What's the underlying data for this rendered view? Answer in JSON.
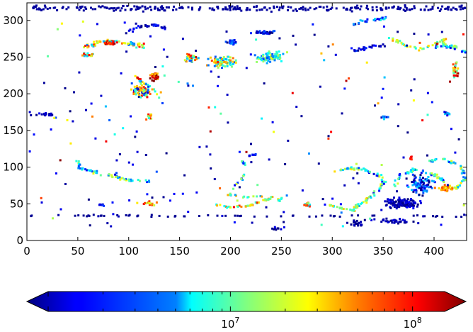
{
  "chart_data": {
    "type": "heatmap",
    "title": "",
    "xlabel": "",
    "ylabel": "",
    "xlim": [
      0,
      432
    ],
    "ylim": [
      0,
      324
    ],
    "x_ticks": [
      0,
      50,
      100,
      150,
      200,
      250,
      300,
      350,
      400
    ],
    "y_ticks": [
      0,
      50,
      100,
      150,
      200,
      250,
      300
    ],
    "x_tick_labels": [
      "0",
      "50",
      "100",
      "150",
      "200",
      "250",
      "300",
      "350",
      "400"
    ],
    "y_tick_labels": [
      "0",
      "50",
      "100",
      "150",
      "200",
      "250",
      "300"
    ],
    "colormap": "jet",
    "colorbar": {
      "orientation": "horizontal",
      "scale": "log",
      "range": [
        1000000,
        150000000
      ],
      "extend": "both",
      "ticks": [
        10000000,
        100000000
      ],
      "tick_labels": [
        {
          "base": "10",
          "exp": "7"
        },
        {
          "base": "10",
          "exp": "8"
        }
      ]
    },
    "features": [
      {
        "type": "band",
        "x0": 0,
        "x1": 432,
        "y": 318,
        "spread": 6,
        "n": 260,
        "val": 0.03
      },
      {
        "type": "band",
        "x0": 0,
        "x1": 432,
        "y": 35,
        "spread": 2,
        "n": 60,
        "val": 0.02
      },
      {
        "type": "arc",
        "points": [
          [
            55,
            265
          ],
          [
            70,
            272
          ],
          [
            85,
            273
          ],
          [
            100,
            270
          ],
          [
            115,
            266
          ]
        ],
        "width": 4,
        "n": 70,
        "val": 0.55,
        "jit": 0.35
      },
      {
        "type": "blob",
        "cx": 80,
        "cy": 270,
        "rx": 10,
        "ry": 4,
        "n": 25,
        "val": 0.88,
        "jit": 0.15
      },
      {
        "type": "arc",
        "points": [
          [
            95,
            285
          ],
          [
            110,
            293
          ],
          [
            125,
            296
          ],
          [
            135,
            290
          ]
        ],
        "width": 3,
        "n": 30,
        "val": 0.08,
        "jit": 0.1
      },
      {
        "type": "blob",
        "cx": 60,
        "cy": 255,
        "rx": 8,
        "ry": 4,
        "n": 18,
        "val": 0.6,
        "jit": 0.3
      },
      {
        "type": "blob",
        "cx": 112,
        "cy": 205,
        "rx": 14,
        "ry": 14,
        "n": 70,
        "val": 0.45,
        "jit": 0.45
      },
      {
        "type": "blob",
        "cx": 125,
        "cy": 225,
        "rx": 6,
        "ry": 10,
        "n": 30,
        "val": 0.85,
        "jit": 0.2
      },
      {
        "type": "arc",
        "points": [
          [
            105,
            225
          ],
          [
            115,
            215
          ],
          [
            125,
            205
          ],
          [
            135,
            185
          ]
        ],
        "width": 3,
        "n": 25,
        "val": 0.55,
        "jit": 0.4
      },
      {
        "type": "blob",
        "cx": 120,
        "cy": 170,
        "rx": 4,
        "ry": 6,
        "n": 10,
        "val": 0.65,
        "jit": 0.3
      },
      {
        "type": "blob",
        "cx": 160,
        "cy": 250,
        "rx": 9,
        "ry": 8,
        "n": 35,
        "val": 0.55,
        "jit": 0.4
      },
      {
        "type": "blob",
        "cx": 190,
        "cy": 245,
        "rx": 20,
        "ry": 10,
        "n": 80,
        "val": 0.5,
        "jit": 0.35
      },
      {
        "type": "blob",
        "cx": 200,
        "cy": 272,
        "rx": 8,
        "ry": 5,
        "n": 25,
        "val": 0.18,
        "jit": 0.15
      },
      {
        "type": "blob",
        "cx": 238,
        "cy": 252,
        "rx": 20,
        "ry": 12,
        "n": 85,
        "val": 0.4,
        "jit": 0.2
      },
      {
        "type": "blob",
        "cx": 230,
        "cy": 285,
        "rx": 18,
        "ry": 4,
        "n": 30,
        "val": 0.12,
        "jit": 0.15
      },
      {
        "type": "arc",
        "points": [
          [
            320,
            296
          ],
          [
            335,
            302
          ],
          [
            352,
            304
          ]
        ],
        "width": 4,
        "n": 30,
        "val": 0.25,
        "jit": 0.2
      },
      {
        "type": "arc",
        "points": [
          [
            320,
            260
          ],
          [
            335,
            265
          ],
          [
            350,
            268
          ]
        ],
        "width": 3,
        "n": 25,
        "val": 0.12,
        "jit": 0.12
      },
      {
        "type": "arc",
        "points": [
          [
            355,
            278
          ],
          [
            370,
            268
          ],
          [
            385,
            262
          ],
          [
            400,
            270
          ],
          [
            410,
            275
          ]
        ],
        "width": 3,
        "n": 45,
        "val": 0.52,
        "jit": 0.2
      },
      {
        "type": "arc",
        "points": [
          [
            400,
            265
          ],
          [
            412,
            268
          ],
          [
            424,
            264
          ],
          [
            430,
            258
          ]
        ],
        "width": 4,
        "n": 35,
        "val": 0.35,
        "jit": 0.25
      },
      {
        "type": "blob",
        "cx": 420,
        "cy": 235,
        "rx": 5,
        "ry": 15,
        "n": 25,
        "val": 0.7,
        "jit": 0.3
      },
      {
        "type": "blob",
        "cx": 412,
        "cy": 175,
        "rx": 4,
        "ry": 6,
        "n": 10,
        "val": 0.25,
        "jit": 0.2
      },
      {
        "type": "arc",
        "points": [
          [
            48,
            110
          ],
          [
            52,
            100
          ],
          [
            65,
            95
          ],
          [
            80,
            90
          ],
          [
            90,
            87
          ],
          [
            100,
            84
          ],
          [
            120,
            83
          ]
        ],
        "width": 3,
        "n": 60,
        "val": 0.38,
        "jit": 0.25
      },
      {
        "type": "arc",
        "points": [
          [
            200,
            72
          ],
          [
            210,
            85
          ],
          [
            215,
            100
          ],
          [
            210,
            110
          ]
        ],
        "width": 2,
        "n": 18,
        "val": 0.35,
        "jit": 0.25
      },
      {
        "type": "arc",
        "points": [
          [
            195,
            65
          ],
          [
            215,
            60
          ],
          [
            230,
            62
          ]
        ],
        "width": 2,
        "n": 15,
        "val": 0.5,
        "jit": 0.3
      },
      {
        "type": "arc",
        "points": [
          [
            185,
            50
          ],
          [
            200,
            47
          ],
          [
            215,
            48
          ],
          [
            230,
            55
          ],
          [
            240,
            60
          ]
        ],
        "width": 2,
        "n": 40,
        "val": 0.62,
        "jit": 0.25
      },
      {
        "type": "arc",
        "points": [
          [
            300,
            95
          ],
          [
            315,
            100
          ],
          [
            330,
            98
          ],
          [
            345,
            90
          ],
          [
            350,
            80
          ],
          [
            340,
            65
          ],
          [
            330,
            55
          ],
          [
            320,
            45
          ]
        ],
        "width": 3,
        "n": 80,
        "val": 0.38,
        "jit": 0.3
      },
      {
        "type": "arc",
        "points": [
          [
            295,
            50
          ],
          [
            310,
            45
          ],
          [
            325,
            42
          ]
        ],
        "width": 2,
        "n": 20,
        "val": 0.55,
        "jit": 0.2
      },
      {
        "type": "blob",
        "cx": 368,
        "cy": 52,
        "rx": 22,
        "ry": 10,
        "n": 130,
        "val": 0.05,
        "jit": 0.08
      },
      {
        "type": "blob",
        "cx": 385,
        "cy": 78,
        "rx": 18,
        "ry": 18,
        "n": 95,
        "val": 0.15,
        "jit": 0.2
      },
      {
        "type": "arc",
        "points": [
          [
            360,
            75
          ],
          [
            365,
            90
          ],
          [
            380,
            98
          ],
          [
            398,
            92
          ],
          [
            410,
            82
          ]
        ],
        "width": 3,
        "n": 50,
        "val": 0.35,
        "jit": 0.25
      },
      {
        "type": "arc",
        "points": [
          [
            395,
            110
          ],
          [
            410,
            112
          ],
          [
            425,
            102
          ],
          [
            430,
            85
          ],
          [
            420,
            72
          ]
        ],
        "width": 3,
        "n": 50,
        "val": 0.4,
        "jit": 0.25
      },
      {
        "type": "blob",
        "cx": 410,
        "cy": 73,
        "rx": 12,
        "ry": 5,
        "n": 40,
        "val": 0.72,
        "jit": 0.12
      },
      {
        "type": "blob",
        "cx": 118,
        "cy": 52,
        "rx": 12,
        "ry": 4,
        "n": 15,
        "val": 0.7,
        "jit": 0.2
      },
      {
        "type": "blob",
        "cx": 72,
        "cy": 50,
        "rx": 3,
        "ry": 3,
        "n": 8,
        "val": 0.12,
        "jit": 0.1
      },
      {
        "type": "blob",
        "cx": 248,
        "cy": 58,
        "rx": 4,
        "ry": 4,
        "n": 8,
        "val": 0.55,
        "jit": 0.2
      },
      {
        "type": "blob",
        "cx": 275,
        "cy": 50,
        "rx": 5,
        "ry": 5,
        "n": 14,
        "val": 0.6,
        "jit": 0.3
      },
      {
        "type": "blob",
        "cx": 325,
        "cy": 25,
        "rx": 10,
        "ry": 6,
        "n": 20,
        "val": 0.04,
        "jit": 0.06
      },
      {
        "type": "blob",
        "cx": 360,
        "cy": 28,
        "rx": 28,
        "ry": 5,
        "n": 30,
        "val": 0.04,
        "jit": 0.06
      },
      {
        "type": "blob",
        "cx": 245,
        "cy": 18,
        "rx": 10,
        "ry": 3,
        "n": 10,
        "val": 0.05,
        "jit": 0.05
      },
      {
        "type": "blob",
        "cx": 18,
        "cy": 173,
        "rx": 12,
        "ry": 3,
        "n": 20,
        "val": 0.05,
        "jit": 0.06
      },
      {
        "type": "blob",
        "cx": 220,
        "cy": 118,
        "rx": 6,
        "ry": 2,
        "n": 10,
        "val": 0.1,
        "jit": 0.1
      },
      {
        "type": "blob",
        "cx": 350,
        "cy": 170,
        "rx": 6,
        "ry": 6,
        "n": 10,
        "val": 0.2,
        "jit": 0.2
      },
      {
        "type": "blob",
        "cx": 378,
        "cy": 115,
        "rx": 4,
        "ry": 4,
        "n": 6,
        "val": 0.88,
        "jit": 0.1
      }
    ],
    "scatter_points": 220
  }
}
